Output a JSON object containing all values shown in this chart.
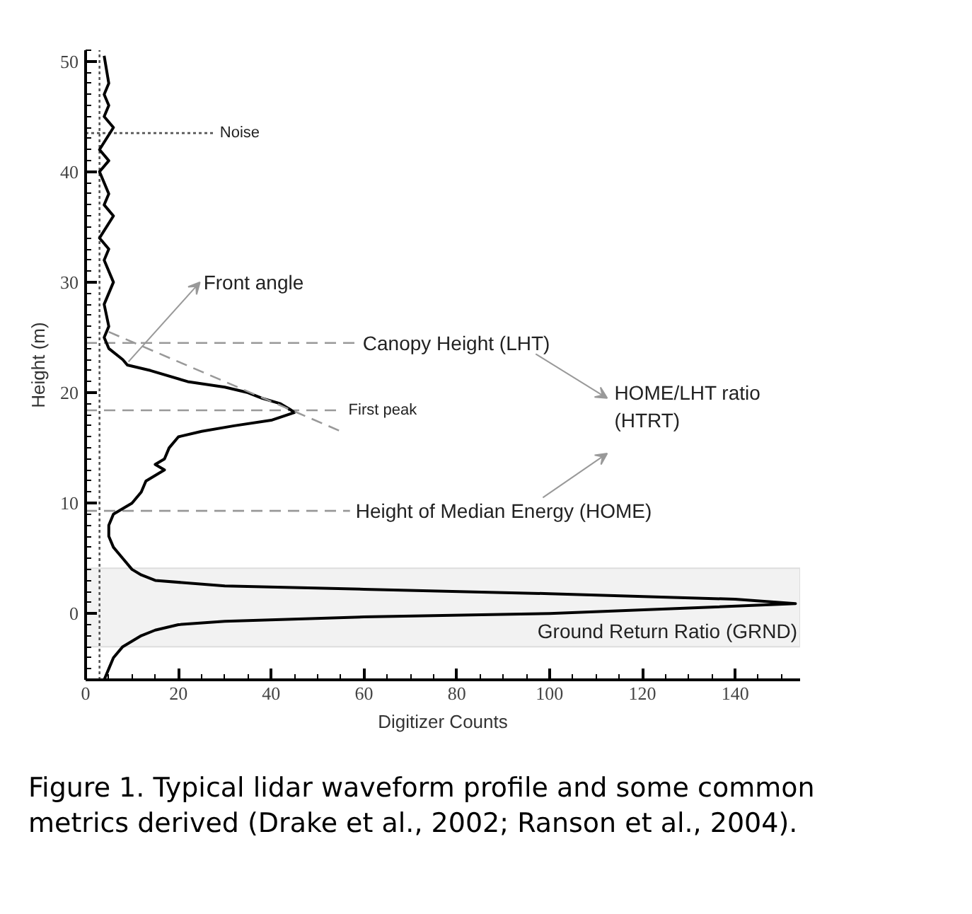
{
  "chart_data": {
    "type": "line",
    "xlabel": "Digitizer Counts",
    "ylabel": "Height (m)",
    "xlim": [
      0,
      154
    ],
    "ylim": [
      -6,
      51
    ],
    "xticks": [
      0,
      20,
      40,
      60,
      80,
      100,
      120,
      140
    ],
    "yticks": [
      0,
      10,
      20,
      30,
      40,
      50
    ],
    "grid": false,
    "marker": "none",
    "series": [
      {
        "color": "#000000",
        "line_style": "solid",
        "x": [
          4,
          5,
          4,
          5,
          4,
          6,
          3,
          5,
          3,
          5,
          4,
          6,
          3,
          5,
          4,
          6,
          4,
          5,
          4,
          5,
          8,
          9,
          14,
          22,
          30,
          35,
          38,
          42,
          44,
          45,
          40,
          32,
          25,
          20,
          18,
          17,
          15,
          17,
          13,
          12,
          10,
          8,
          6,
          5,
          5,
          6,
          8,
          10,
          12,
          15,
          30,
          60,
          100,
          140,
          153,
          130,
          100,
          60,
          30,
          20,
          15,
          12,
          8,
          6,
          5,
          4
        ],
        "values": [
          50.5,
          48,
          47,
          46,
          45,
          44,
          42,
          41,
          40,
          38,
          37,
          36,
          34,
          33,
          32,
          30,
          28,
          26,
          25,
          24,
          23,
          22.5,
          22,
          21,
          20.5,
          20,
          19.5,
          19,
          18.5,
          18.2,
          17.5,
          17,
          16.5,
          16,
          15,
          14,
          13.5,
          13,
          12,
          11,
          10,
          9.5,
          9,
          8,
          7,
          6,
          5,
          4,
          3.5,
          3,
          2.5,
          2.2,
          1.8,
          1.3,
          0.9,
          0.5,
          0,
          -0.3,
          -0.7,
          -1,
          -1.5,
          -2,
          -3,
          -4,
          -5,
          -6
        ]
      },
      {
        "color": "#999999",
        "line_style": "dashed",
        "x": [
          5,
          55
        ],
        "values": [
          25.5,
          16.5
        ]
      }
    ],
    "ref_lines": [
      {
        "axis": "y",
        "value": 43.5,
        "label": "Noise",
        "line_style": "dotted",
        "color": "#555555"
      },
      {
        "axis": "y",
        "value": 24.5,
        "label": "Canopy Height (LHT)",
        "line_style": "dashed",
        "color": "#999999"
      },
      {
        "axis": "y",
        "value": 18.4,
        "label": "First peak",
        "line_style": "dashed",
        "color": "#999999"
      },
      {
        "axis": "y",
        "value": 9.3,
        "label": "Height of Median Energy (HOME)",
        "line_style": "dashed",
        "color": "#999999"
      },
      {
        "axis": "x",
        "value": 3,
        "line_style": "dotted",
        "color": "#555555"
      }
    ],
    "bands": [
      {
        "axis": "y",
        "from": -3,
        "to": 4.1,
        "label": "Ground Return Ratio (GRND)",
        "color": "#f2f2f2"
      }
    ],
    "annotations": [
      "Front angle",
      "HOME/LHT ratio\n(HTRT)",
      "Figure 1. Typical lidar waveform profile and some common metrics derived (Drake et al., 2002; Ranson et al., 2004)."
    ]
  }
}
